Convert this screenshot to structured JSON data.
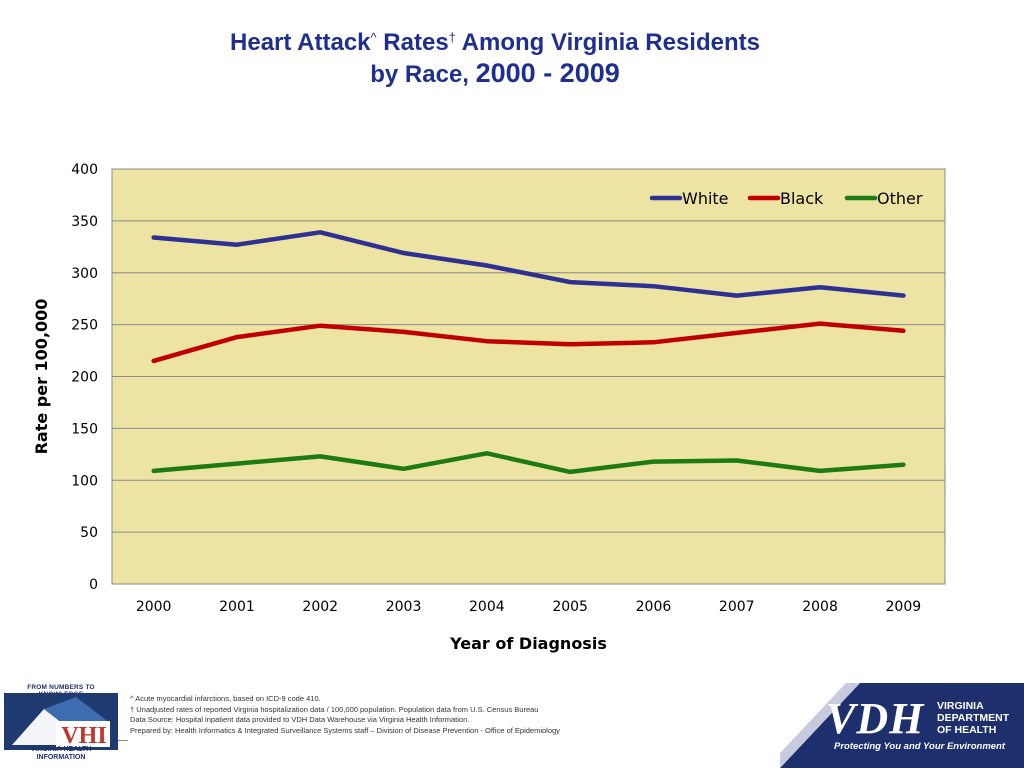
{
  "title": {
    "line1_part1": "Heart Attack",
    "sup1": "^",
    "line1_part2": " Rates",
    "sup2": "†",
    "line1_part3": " Among Virginia Residents",
    "line2_part1": "by Race, ",
    "line2_years": "2000 - 2009"
  },
  "chart_data": {
    "type": "line",
    "x": [
      "2000",
      "2001",
      "2002",
      "2003",
      "2004",
      "2005",
      "2006",
      "2007",
      "2008",
      "2009"
    ],
    "series": [
      {
        "name": "White",
        "color": "#2e3192",
        "values": [
          334,
          327,
          339,
          319,
          307,
          291,
          287,
          278,
          286,
          278
        ]
      },
      {
        "name": "Black",
        "color": "#c00000",
        "values": [
          215,
          238,
          249,
          243,
          234,
          231,
          233,
          242,
          251,
          244
        ]
      },
      {
        "name": "Other",
        "color": "#1e7b14",
        "values": [
          109,
          116,
          123,
          111,
          126,
          108,
          118,
          119,
          109,
          115
        ]
      }
    ],
    "xlabel": "Year of Diagnosis",
    "ylabel": "Rate per 100,000",
    "ylim": [
      0,
      400
    ],
    "yticks": [
      0,
      50,
      100,
      150,
      200,
      250,
      300,
      350,
      400
    ],
    "grid": true,
    "legend": "top-right",
    "plot_background": "#ede3a3"
  },
  "vhi_logo": {
    "top_text": "FROM NUMBERS TO KNOWLEDGE",
    "mark": "VHI",
    "bottom_line1": "VIRGINIA HEALTH",
    "bottom_line2": "INFORMATION"
  },
  "notes": {
    "line1": "^  Acute myocardial infarctions, based on ICD-9 code 410.",
    "line2": "† Unadjusted rates of reported Virginia hospitalization data / 100,000 population.  Population data from U.S. Census Bureau",
    "line3": "Data Source: Hospital inpatient data provided to VDH Data Warehouse via Virginia Health Information.",
    "line4": "Prepared by:  Health Informatics & Integrated Surveillance Systems staff – Division of Disease Prevention - Office of Epidemiology"
  },
  "vdh_logo": {
    "mark": "VDH",
    "dept_line1": "VIRGINIA",
    "dept_line2": "DEPARTMENT",
    "dept_line3": "OF HEALTH",
    "slogan": "Protecting You and Your Environment"
  }
}
